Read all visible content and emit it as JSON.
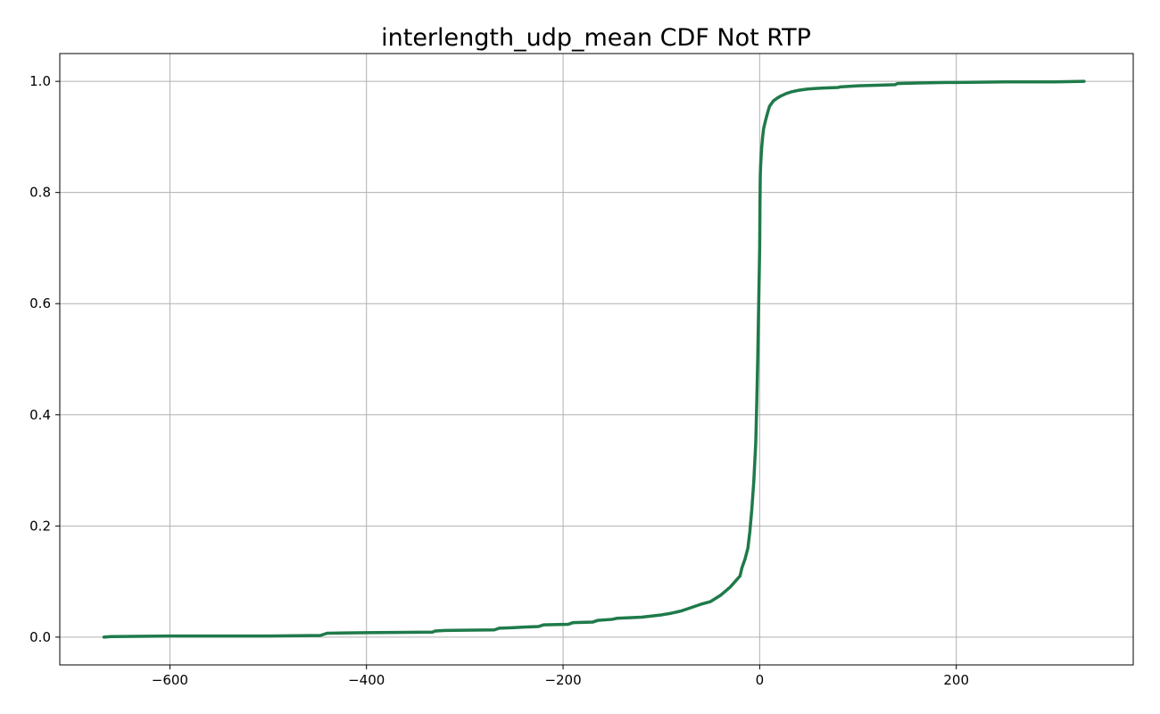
{
  "chart_data": {
    "type": "line",
    "title": "interlength_udp_mean CDF Not RTP",
    "xlabel": "",
    "ylabel": "",
    "xlim": [
      -712,
      380
    ],
    "ylim": [
      -0.05,
      1.05
    ],
    "grid": true,
    "line_color": "#1f7a4a",
    "x_ticks": [
      -600,
      -400,
      -200,
      0,
      200
    ],
    "x_tick_labels": [
      "−600",
      "−400",
      "−200",
      "0",
      "200"
    ],
    "y_ticks": [
      0.0,
      0.2,
      0.4,
      0.6,
      0.8,
      1.0
    ],
    "y_tick_labels": [
      "0.0",
      "0.2",
      "0.4",
      "0.6",
      "0.8",
      "1.0"
    ],
    "series": [
      {
        "x": [
          -667,
          -660,
          -600,
          -500,
          -447,
          -440,
          -400,
          -333,
          -330,
          -320,
          -270,
          -265,
          -250,
          -240,
          -225,
          -220,
          -195,
          -190,
          -170,
          -165,
          -150,
          -145,
          -120,
          -100,
          -90,
          -80,
          -70,
          -60,
          -50,
          -40,
          -30,
          -25,
          -20,
          -18,
          -15,
          -12,
          -10,
          -8,
          -6,
          -4,
          -3,
          -2,
          -1,
          0,
          0.3,
          0.6,
          1,
          1.5,
          2,
          3,
          4,
          6,
          8,
          10,
          14,
          18,
          22,
          27,
          32,
          40,
          48,
          55,
          65,
          80,
          82,
          100,
          120,
          138,
          140,
          160,
          190,
          200,
          250,
          300,
          330
        ],
        "y": [
          0.0,
          0.001,
          0.002,
          0.002,
          0.003,
          0.007,
          0.008,
          0.009,
          0.011,
          0.012,
          0.013,
          0.016,
          0.017,
          0.018,
          0.019,
          0.022,
          0.023,
          0.026,
          0.027,
          0.03,
          0.032,
          0.034,
          0.036,
          0.04,
          0.043,
          0.047,
          0.053,
          0.059,
          0.064,
          0.075,
          0.09,
          0.1,
          0.11,
          0.125,
          0.14,
          0.16,
          0.19,
          0.23,
          0.28,
          0.35,
          0.42,
          0.5,
          0.6,
          0.7,
          0.78,
          0.83,
          0.85,
          0.865,
          0.88,
          0.9,
          0.915,
          0.93,
          0.943,
          0.955,
          0.965,
          0.97,
          0.974,
          0.978,
          0.981,
          0.984,
          0.986,
          0.987,
          0.988,
          0.989,
          0.99,
          0.992,
          0.993,
          0.994,
          0.996,
          0.997,
          0.998,
          0.998,
          0.999,
          0.999,
          1.0
        ]
      }
    ]
  }
}
